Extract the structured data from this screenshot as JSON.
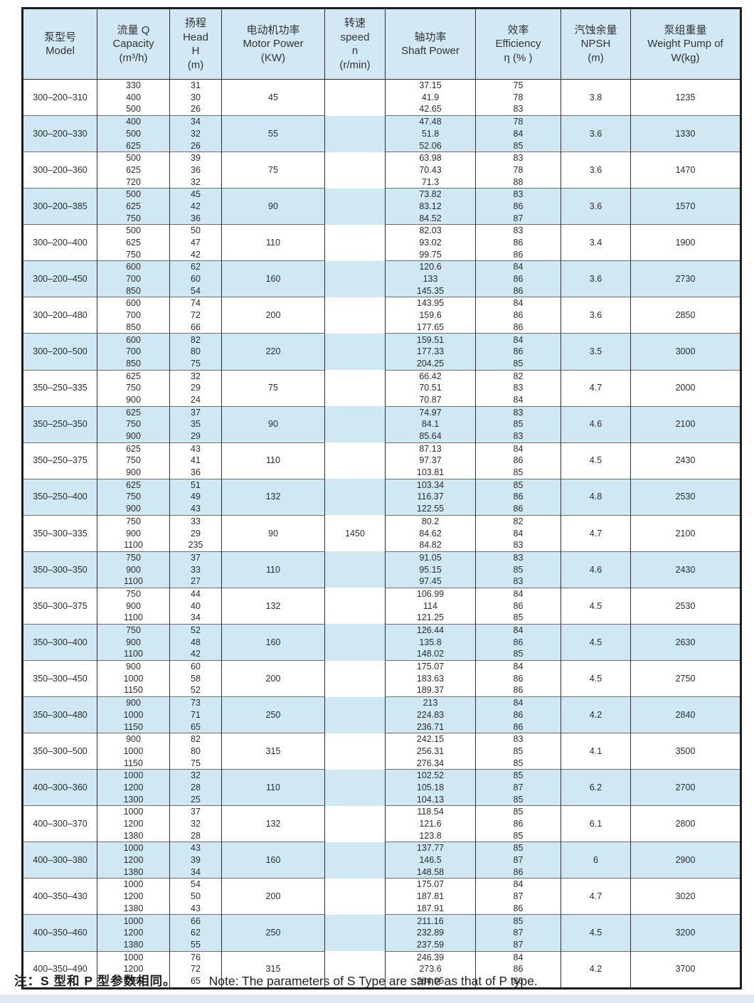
{
  "note": {
    "zh": "注：S 型和 P 型参数相同。",
    "en": "Note: The parameters of S Type are same as that of P type."
  },
  "colors": {
    "band_blue": "#cfe8f4",
    "band_white": "#ffffff",
    "header_blue": "#d2e9f5",
    "border_dark": "#1c1c1c"
  },
  "table": {
    "speed": {
      "value": "1450",
      "group_index": 12
    },
    "columns": [
      {
        "id": "model",
        "lines": [
          "泵型号",
          "Model"
        ]
      },
      {
        "id": "capacity",
        "lines": [
          "流量 Q",
          "Capacity",
          "(m³/h)"
        ]
      },
      {
        "id": "head",
        "lines": [
          "扬程",
          "Head",
          "H",
          "(m)"
        ]
      },
      {
        "id": "motor",
        "lines": [
          "电动机功率",
          "Motor Power",
          "(KW)"
        ]
      },
      {
        "id": "speed",
        "lines": [
          "转速",
          "speed",
          "n",
          "(r/min)"
        ]
      },
      {
        "id": "shaft",
        "lines": [
          "轴功率",
          "Shaft Power"
        ]
      },
      {
        "id": "efficiency",
        "lines": [
          "效率",
          "Efficiency",
          "η (% )"
        ]
      },
      {
        "id": "npsh",
        "lines": [
          "汽蚀余量",
          "NPSH",
          "(m)"
        ]
      },
      {
        "id": "weight",
        "lines": [
          "泵组重量",
          "Weight Pump of",
          "W(kg)"
        ]
      }
    ],
    "groups": [
      {
        "model": "300–200–310",
        "capacity": [
          "330",
          "400",
          "500"
        ],
        "head": [
          "31",
          "30",
          "26"
        ],
        "motor_power": "45",
        "shaft_power": [
          "37.15",
          "41.9",
          "42.65"
        ],
        "efficiency": [
          "75",
          "78",
          "83"
        ],
        "npsh": "3.8",
        "weight": "1235"
      },
      {
        "model": "300–200–330",
        "capacity": [
          "400",
          "500",
          "625"
        ],
        "head": [
          "34",
          "32",
          "26"
        ],
        "motor_power": "55",
        "shaft_power": [
          "47.48",
          "51.8",
          "52.06"
        ],
        "efficiency": [
          "78",
          "84",
          "85"
        ],
        "npsh": "3.6",
        "weight": "1330"
      },
      {
        "model": "300–200–360",
        "capacity": [
          "500",
          "625",
          "720"
        ],
        "head": [
          "39",
          "36",
          "32"
        ],
        "motor_power": "75",
        "shaft_power": [
          "63.98",
          "70.43",
          "71.3"
        ],
        "efficiency": [
          "83",
          "78",
          "88"
        ],
        "npsh": "3.6",
        "weight": "1470"
      },
      {
        "model": "300–200–385",
        "capacity": [
          "500",
          "625",
          "750"
        ],
        "head": [
          "45",
          "42",
          "36"
        ],
        "motor_power": "90",
        "shaft_power": [
          "73.82",
          "83.12",
          "84.52"
        ],
        "efficiency": [
          "83",
          "86",
          "87"
        ],
        "npsh": "3.6",
        "weight": "1570"
      },
      {
        "model": "300–200–400",
        "capacity": [
          "500",
          "625",
          "750"
        ],
        "head": [
          "50",
          "47",
          "42"
        ],
        "motor_power": "110",
        "shaft_power": [
          "82.03",
          "93.02",
          "99.75"
        ],
        "efficiency": [
          "83",
          "86",
          "86"
        ],
        "npsh": "3.4",
        "weight": "1900"
      },
      {
        "model": "300–200–450",
        "capacity": [
          "600",
          "700",
          "850"
        ],
        "head": [
          "62",
          "60",
          "54"
        ],
        "motor_power": "160",
        "shaft_power": [
          "120.6",
          "133",
          "145.35"
        ],
        "efficiency": [
          "84",
          "86",
          "86"
        ],
        "npsh": "3.6",
        "weight": "2730"
      },
      {
        "model": "300–200–480",
        "capacity": [
          "600",
          "700",
          "850"
        ],
        "head": [
          "74",
          "72",
          "66"
        ],
        "motor_power": "200",
        "shaft_power": [
          "143.95",
          "159.6",
          "177.65"
        ],
        "efficiency": [
          "84",
          "86",
          "86"
        ],
        "npsh": "3.6",
        "weight": "2850"
      },
      {
        "model": "300–200–500",
        "capacity": [
          "600",
          "700",
          "850"
        ],
        "head": [
          "82",
          "80",
          "75"
        ],
        "motor_power": "220",
        "shaft_power": [
          "159.51",
          "177.33",
          "204.25"
        ],
        "efficiency": [
          "84",
          "86",
          "85"
        ],
        "npsh": "3.5",
        "weight": "3000"
      },
      {
        "model": "350–250–335",
        "capacity": [
          "625",
          "750",
          "900"
        ],
        "head": [
          "32",
          "29",
          "24"
        ],
        "motor_power": "75",
        "shaft_power": [
          "66.42",
          "70.51",
          "70.87"
        ],
        "efficiency": [
          "82",
          "83",
          "84"
        ],
        "npsh": "4.7",
        "weight": "2000"
      },
      {
        "model": "350–250–350",
        "capacity": [
          "625",
          "750",
          "900"
        ],
        "head": [
          "37",
          "35",
          "29"
        ],
        "motor_power": "90",
        "shaft_power": [
          "74.97",
          "84.1",
          "85.64"
        ],
        "efficiency": [
          "83",
          "85",
          "83"
        ],
        "npsh": "4.6",
        "weight": "2100"
      },
      {
        "model": "350–250–375",
        "capacity": [
          "625",
          "750",
          "900"
        ],
        "head": [
          "43",
          "41",
          "36"
        ],
        "motor_power": "110",
        "shaft_power": [
          "87.13",
          "97.37",
          "103.81"
        ],
        "efficiency": [
          "84",
          "86",
          "85"
        ],
        "npsh": "4.5",
        "weight": "2430"
      },
      {
        "model": "350–250–400",
        "capacity": [
          "625",
          "750",
          "900"
        ],
        "head": [
          "51",
          "49",
          "43"
        ],
        "motor_power": "132",
        "shaft_power": [
          "103.34",
          "116.37",
          "122.55"
        ],
        "efficiency": [
          "85",
          "86",
          "86"
        ],
        "npsh": "4.8",
        "weight": "2530"
      },
      {
        "model": "350–300–335",
        "capacity": [
          "750",
          "900",
          "1100"
        ],
        "head": [
          "33",
          "29",
          "235"
        ],
        "motor_power": "90",
        "shaft_power": [
          "80.2",
          "84.62",
          "84.82"
        ],
        "efficiency": [
          "82",
          "84",
          "83"
        ],
        "npsh": "4.7",
        "weight": "2100"
      },
      {
        "model": "350–300–350",
        "capacity": [
          "750",
          "900",
          "1100"
        ],
        "head": [
          "37",
          "33",
          "27"
        ],
        "motor_power": "110",
        "shaft_power": [
          "91.05",
          "95.15",
          "97.45"
        ],
        "efficiency": [
          "83",
          "85",
          "83"
        ],
        "npsh": "4.6",
        "weight": "2430"
      },
      {
        "model": "350–300–375",
        "capacity": [
          "750",
          "900",
          "1100"
        ],
        "head": [
          "44",
          "40",
          "34"
        ],
        "motor_power": "132",
        "shaft_power": [
          "106.99",
          "114",
          "121.25"
        ],
        "efficiency": [
          "84",
          "86",
          "85"
        ],
        "npsh": "4.5",
        "weight": "2530"
      },
      {
        "model": "350–300–400",
        "capacity": [
          "750",
          "900",
          "1100"
        ],
        "head": [
          "52",
          "48",
          "42"
        ],
        "motor_power": "160",
        "shaft_power": [
          "126.44",
          "135.8",
          "148.02"
        ],
        "efficiency": [
          "84",
          "86",
          "85"
        ],
        "npsh": "4.5",
        "weight": "2630"
      },
      {
        "model": "350–300–450",
        "capacity": [
          "900",
          "1000",
          "1150"
        ],
        "head": [
          "60",
          "58",
          "52"
        ],
        "motor_power": "200",
        "shaft_power": [
          "175.07",
          "183.63",
          "189.37"
        ],
        "efficiency": [
          "84",
          "86",
          "86"
        ],
        "npsh": "4.5",
        "weight": "2750"
      },
      {
        "model": "350–300–480",
        "capacity": [
          "900",
          "1000",
          "1150"
        ],
        "head": [
          "73",
          "71",
          "65"
        ],
        "motor_power": "250",
        "shaft_power": [
          "213",
          "224.83",
          "236.71"
        ],
        "efficiency": [
          "84",
          "86",
          "86"
        ],
        "npsh": "4.2",
        "weight": "2840"
      },
      {
        "model": "350–300–500",
        "capacity": [
          "900",
          "1000",
          "1150"
        ],
        "head": [
          "82",
          "80",
          "75"
        ],
        "motor_power": "315",
        "shaft_power": [
          "242.15",
          "256.31",
          "276.34"
        ],
        "efficiency": [
          "83",
          "85",
          "85"
        ],
        "npsh": "4.1",
        "weight": "3500"
      },
      {
        "model": "400–300–360",
        "capacity": [
          "1000",
          "1200",
          "1300"
        ],
        "head": [
          "32",
          "28",
          "25"
        ],
        "motor_power": "110",
        "shaft_power": [
          "102.52",
          "105.18",
          "104.13"
        ],
        "efficiency": [
          "85",
          "87",
          "85"
        ],
        "npsh": "6.2",
        "weight": "2700"
      },
      {
        "model": "400–300–370",
        "capacity": [
          "1000",
          "1200",
          "1380"
        ],
        "head": [
          "37",
          "32",
          "28"
        ],
        "motor_power": "132",
        "shaft_power": [
          "118.54",
          "121.6",
          "123.8"
        ],
        "efficiency": [
          "85",
          "86",
          "85"
        ],
        "npsh": "6.1",
        "weight": "2800"
      },
      {
        "model": "400–300–380",
        "capacity": [
          "1000",
          "1200",
          "1380"
        ],
        "head": [
          "43",
          "39",
          "34"
        ],
        "motor_power": "160",
        "shaft_power": [
          "137.77",
          "146.5",
          "148.58"
        ],
        "efficiency": [
          "85",
          "87",
          "86"
        ],
        "npsh": "6",
        "weight": "2900"
      },
      {
        "model": "400–350–430",
        "capacity": [
          "1000",
          "1200",
          "1380"
        ],
        "head": [
          "54",
          "50",
          "43"
        ],
        "motor_power": "200",
        "shaft_power": [
          "175.07",
          "187.81",
          "187.91"
        ],
        "efficiency": [
          "84",
          "87",
          "86"
        ],
        "npsh": "4.7",
        "weight": "3020"
      },
      {
        "model": "400–350–460",
        "capacity": [
          "1000",
          "1200",
          "1380"
        ],
        "head": [
          "66",
          "62",
          "55"
        ],
        "motor_power": "250",
        "shaft_power": [
          "211.16",
          "232.89",
          "237.59"
        ],
        "efficiency": [
          "85",
          "87",
          "87"
        ],
        "npsh": "4.5",
        "weight": "3200"
      },
      {
        "model": "400–350–490",
        "capacity": [
          "1000",
          "1200",
          "1380"
        ],
        "head": [
          "76",
          "72",
          "65"
        ],
        "motor_power": "315",
        "shaft_power": [
          "246.39",
          "273.6",
          "284.05"
        ],
        "efficiency": [
          "84",
          "86",
          "86"
        ],
        "npsh": "4.2",
        "weight": "3700"
      }
    ]
  }
}
